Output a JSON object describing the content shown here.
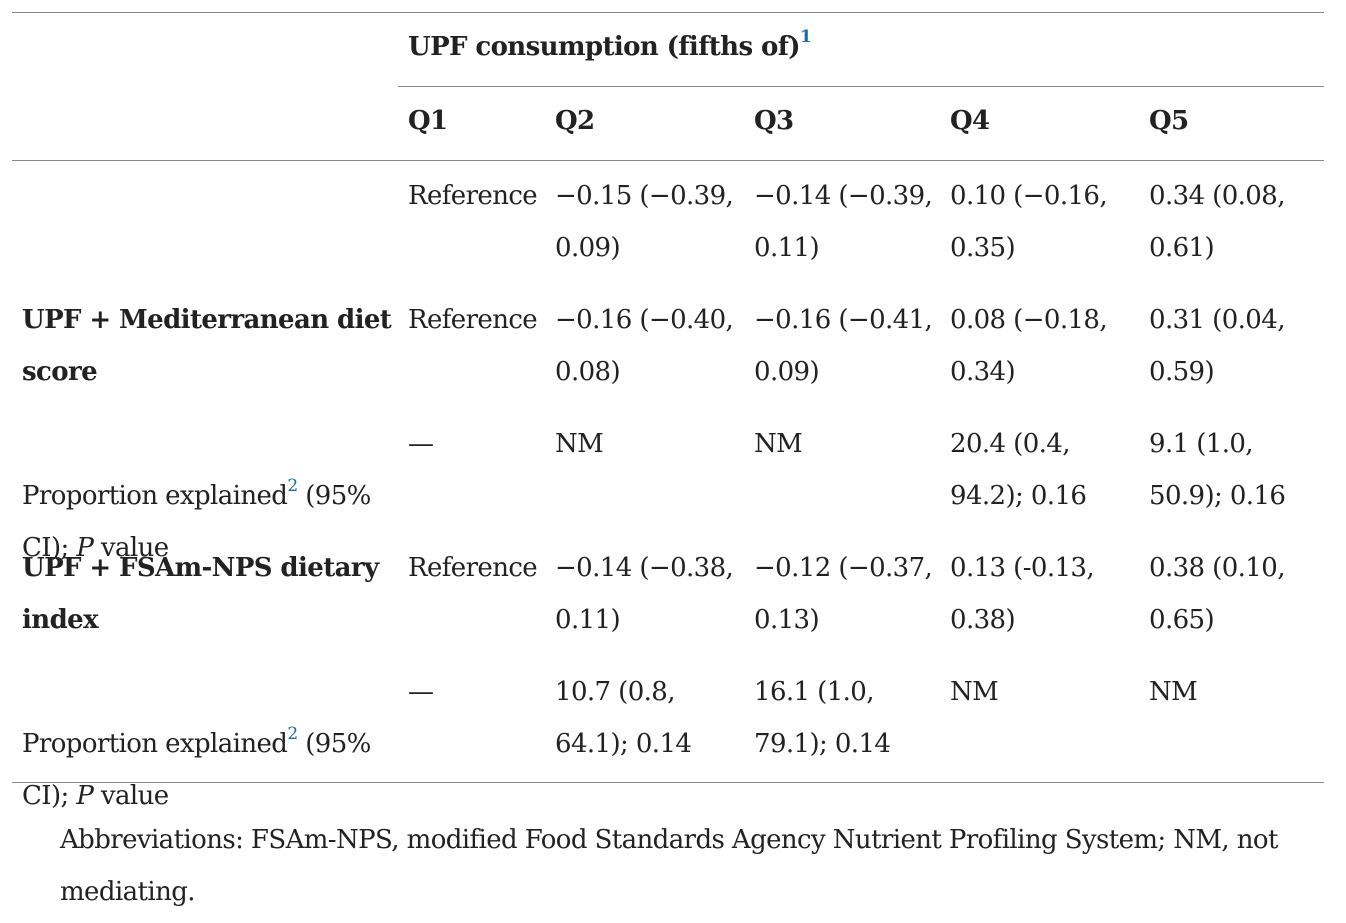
{
  "header": {
    "group_title": "UPF consumption (fifths of)",
    "group_title_sup": "1",
    "quintiles": [
      "Q1",
      "Q2",
      "Q3",
      "Q4",
      "Q5"
    ]
  },
  "rows": [
    {
      "label": "",
      "label_bold": false,
      "cells": [
        "Reference",
        "−0.15 (−0.39,\n0.09)",
        "−0.14 (−0.39,\n0.11)",
        "0.10 (−0.16,\n0.35)",
        "0.34 (0.08,\n0.61)"
      ]
    },
    {
      "label": "UPF + Mediterranean diet\nscore",
      "label_bold": true,
      "cells": [
        "Reference",
        "−0.16 (−0.40,\n0.08)",
        "−0.16 (−0.41,\n0.09)",
        "0.08 (−0.18,\n0.34)",
        "0.31 (0.04,\n0.59)"
      ]
    },
    {
      "label_a": "Proportion explained",
      "label_sup": "2",
      "label_b": " (95%",
      "label_c": "CI); ",
      "label_p": "P",
      "label_d": " value",
      "cells": [
        "—",
        "NM",
        "NM",
        "20.4 (0.4,\n94.2); 0.16",
        "9.1 (1.0,\n50.9); 0.16"
      ]
    },
    {
      "label": "UPF + FSAm-NPS dietary\nindex",
      "label_bold": true,
      "cells": [
        "Reference",
        "−0.14 (−0.38,\n0.11)",
        "−0.12 (−0.37,\n0.13)",
        "0.13 (-0.13,\n0.38)",
        "0.38 (0.10,\n0.65)"
      ]
    },
    {
      "label_a": "Proportion explained",
      "label_sup": "2",
      "label_b": " (95%",
      "label_c": "CI); ",
      "label_p": "P",
      "label_d": " value",
      "cells": [
        "—",
        "10.7 (0.8,\n64.1); 0.14",
        "16.1 (1.0,\n79.1); 0.14",
        "NM",
        "NM"
      ]
    }
  ],
  "footnote": "Abbreviations: FSAm-NPS, modified Food Standards Agency Nutrient Profiling System; NM, not mediating."
}
